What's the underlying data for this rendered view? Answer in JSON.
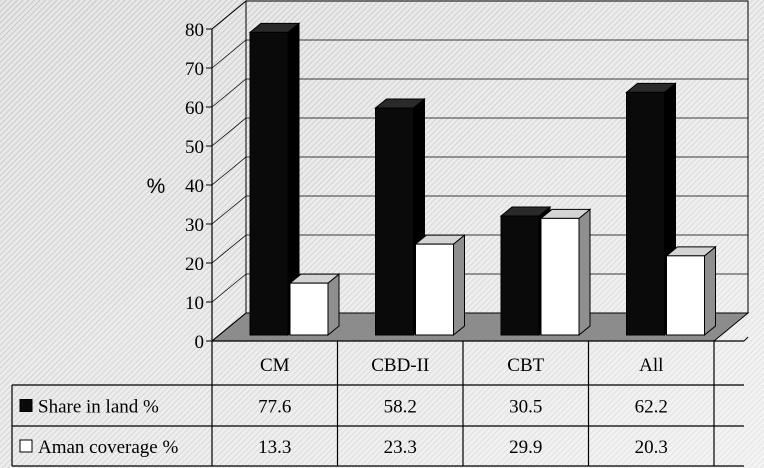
{
  "chart_data": {
    "type": "bar",
    "ylabel": "%",
    "ylim": [
      0,
      80
    ],
    "yticks": [
      "0",
      "10",
      "20",
      "30",
      "40",
      "50",
      "60",
      "70",
      "80"
    ],
    "categories": [
      "CM",
      "CBD-II",
      "CBT",
      "All"
    ],
    "series": [
      {
        "name": "Share in land %",
        "values": [
          77.6,
          58.2,
          30.5,
          62.2
        ],
        "value_labels": [
          "77.6",
          "58.2",
          "30.5",
          "62.2"
        ],
        "color": "#0a0a0a"
      },
      {
        "name": "Aman coverage %",
        "values": [
          13.3,
          23.3,
          29.9,
          20.3
        ],
        "value_labels": [
          "13.3",
          "23.3",
          "29.9",
          "20.3"
        ],
        "color": "#ffffff"
      }
    ],
    "legend": "data-table-below",
    "grid": true,
    "style": "3d-clustered-column-with-data-table"
  }
}
